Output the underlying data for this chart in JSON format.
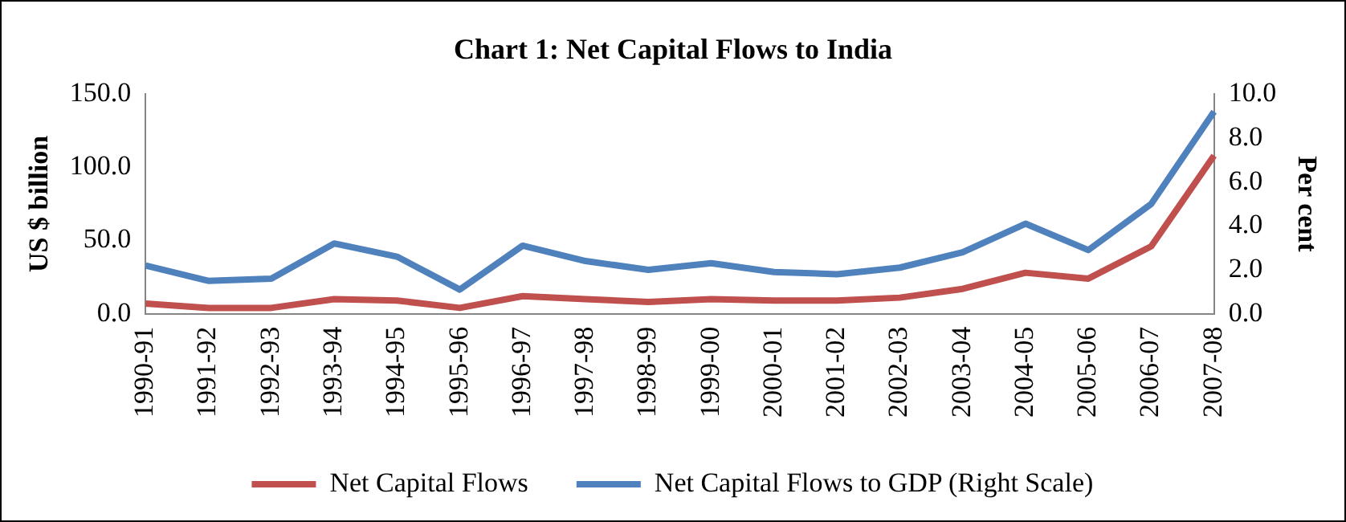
{
  "chart_data": {
    "type": "line",
    "title": "Chart 1: Net Capital Flows to India",
    "ylabel": "US $ billion",
    "y2label": "Per cent",
    "categories": [
      "1990-91",
      "1991-92",
      "1992-93",
      "1993-94",
      "1994-95",
      "1995-96",
      "1996-97",
      "1997-98",
      "1998-99",
      "1999-00",
      "2000-01",
      "2001-02",
      "2002-03",
      "2003-04",
      "2004-05",
      "2005-06",
      "2006-07",
      "2007-08"
    ],
    "series": [
      {
        "name": "Net Capital Flows",
        "color": "#c0504d",
        "values": [
          7,
          4,
          4,
          10,
          9,
          4,
          12,
          10,
          8,
          10,
          9,
          9,
          11,
          17,
          28,
          24,
          46,
          108
        ]
      },
      {
        "name": "Net Capital Flows to GDP (Right Scale)",
        "color": "#4f81bd",
        "axis": "y2",
        "values": [
          2.2,
          1.5,
          1.6,
          3.2,
          2.6,
          1.1,
          3.1,
          2.4,
          2.0,
          2.3,
          1.9,
          1.8,
          2.1,
          2.8,
          4.1,
          2.9,
          5.0,
          9.2
        ]
      }
    ],
    "ylim": [
      0,
      150
    ],
    "yticks": [
      {
        "value": 0,
        "label": "0.0"
      },
      {
        "value": 50,
        "label": "50.0"
      },
      {
        "value": 100,
        "label": "100.0"
      },
      {
        "value": 150,
        "label": "150.0"
      }
    ],
    "y2lim": [
      0,
      10
    ],
    "y2ticks": [
      {
        "value": 0,
        "label": "0.0"
      },
      {
        "value": 2,
        "label": "2.0"
      },
      {
        "value": 4,
        "label": "4.0"
      },
      {
        "value": 6,
        "label": "6.0"
      },
      {
        "value": 8,
        "label": "8.0"
      },
      {
        "value": 10,
        "label": "10.0"
      }
    ],
    "grid": false,
    "legend": "bottom",
    "marker": "none",
    "line_style": "solid"
  }
}
